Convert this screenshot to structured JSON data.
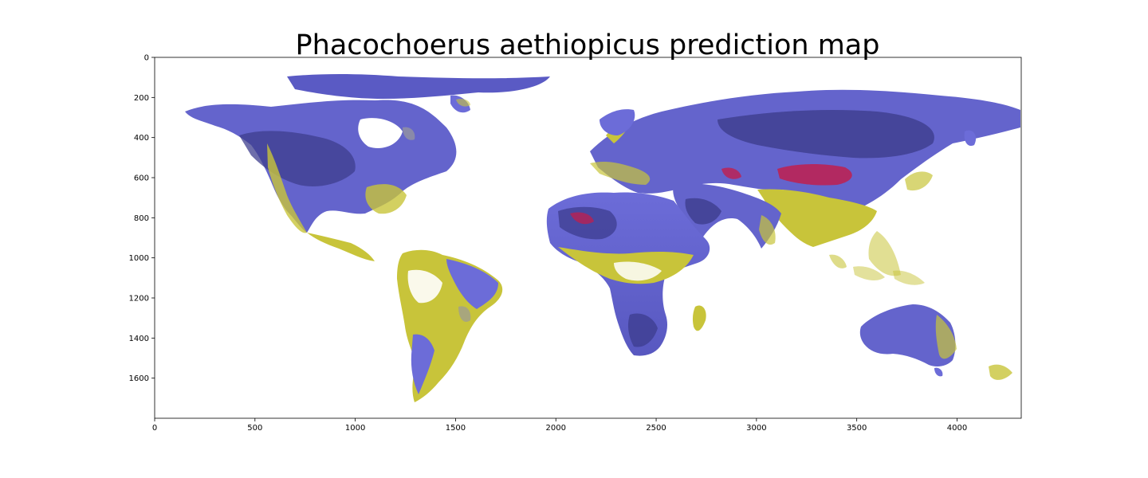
{
  "title": "Phacochoerus aethiopicus prediction map",
  "axes": {
    "x_ticks": [
      "0",
      "500",
      "1000",
      "1500",
      "2000",
      "2500",
      "3000",
      "3500",
      "4000"
    ],
    "y_ticks": [
      "0",
      "200",
      "400",
      "600",
      "800",
      "1000",
      "1200",
      "1400",
      "1600"
    ]
  },
  "chart_data": {
    "type": "heatmap",
    "title": "Phacochoerus aethiopicus prediction map",
    "xlabel": "",
    "ylabel": "",
    "x_ticks": [
      0,
      500,
      1000,
      1500,
      2000,
      2500,
      3000,
      3500,
      4000
    ],
    "y_ticks": [
      0,
      200,
      400,
      600,
      800,
      1000,
      1200,
      1400,
      1600
    ],
    "xlim": [
      0,
      4320
    ],
    "ylim": [
      1800,
      0
    ],
    "y_inverted": true,
    "grid": false,
    "colormap": [
      "#ffffff",
      "#c8c43a",
      "#6c6cd8",
      "#3b3b8a",
      "#c01e4e"
    ],
    "colors": {
      "low": "#ffffff",
      "yellow": "#c8c43a",
      "blue": "#6c6cd8",
      "dark_blue": "#3b3b8a",
      "high": "#c01e4e",
      "grey": "#9a9a9a"
    }
  }
}
